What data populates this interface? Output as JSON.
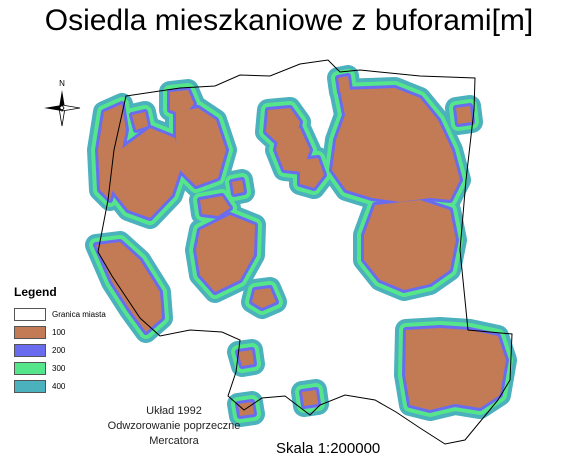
{
  "title": "Osiedla mieszkaniowe z buforami[m]",
  "north_label": "N",
  "legend": {
    "title": "Legend",
    "items": [
      {
        "label": "Granica miasta",
        "color": "#ffffff"
      },
      {
        "label": "100",
        "color": "#c27b55"
      },
      {
        "label": "200",
        "color": "#6a6cf0"
      },
      {
        "label": "300",
        "color": "#55e58a"
      },
      {
        "label": "400",
        "color": "#4ab1bd"
      }
    ]
  },
  "projection": {
    "line1": "Układ 1992",
    "line2": "Odwzorowanie poprzeczne",
    "line3": "Mercatora"
  },
  "scale": "Skala 1:200000"
}
